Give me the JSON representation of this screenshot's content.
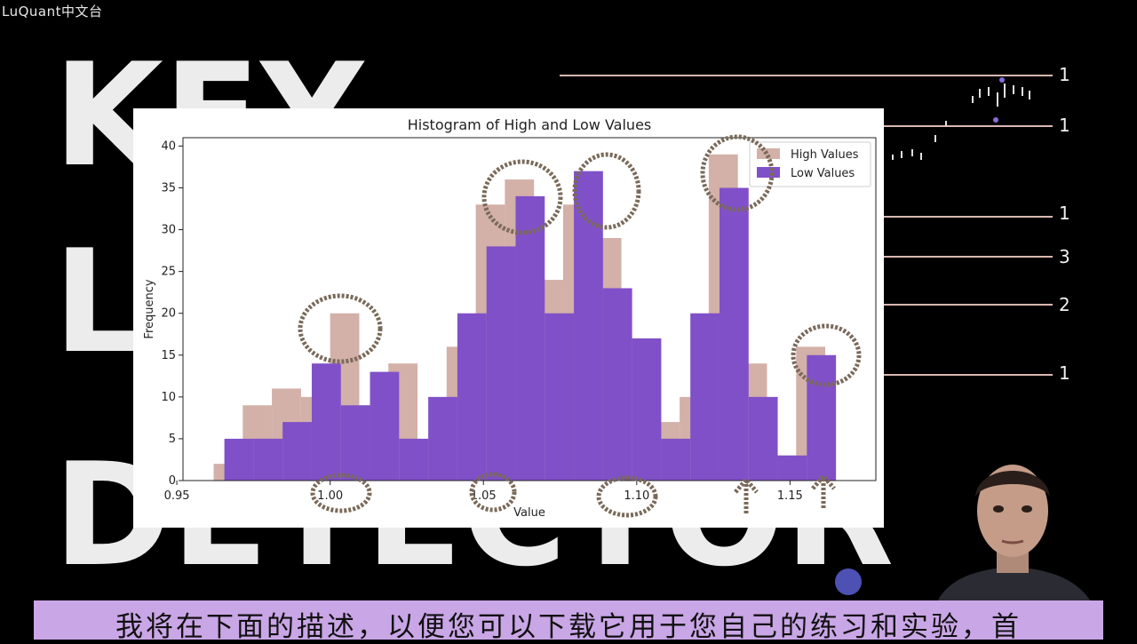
{
  "overlay": {
    "watermark": "LuQuant中文台",
    "background_words": [
      "KEY",
      "L",
      "DETECTOR"
    ],
    "level_numbers": [
      "1",
      "1",
      "1",
      "3",
      "2",
      "1"
    ],
    "subtitle": "我将在下面的描述，以便您可以下载它用于您自己的练习和实验，首"
  },
  "colors": {
    "high_bars": "#d3b0a8",
    "low_bars": "#8050c8",
    "level_lines": "#d9b8b0",
    "annotation": "#7a6a5a",
    "subtitle_bg": "#c9a6e6"
  },
  "chart_data": {
    "type": "bar",
    "title": "Histogram of High and Low Values",
    "xlabel": "Value",
    "ylabel": "Frequency",
    "xlim": [
      0.952,
      1.178
    ],
    "ylim": [
      0,
      41
    ],
    "xticks": [
      "0.95",
      "1.00",
      "1.05",
      "1.10",
      "1.15"
    ],
    "yticks": [
      "0",
      "5",
      "10",
      "15",
      "20",
      "25",
      "30",
      "35",
      "40"
    ],
    "legend": "top-right",
    "series": [
      {
        "name": "High Values",
        "bin_width": 0.0095,
        "bins": [
          [
            0.962,
            2
          ],
          [
            0.9715,
            9
          ],
          [
            0.981,
            11
          ],
          [
            0.9905,
            10
          ],
          [
            1.0,
            20
          ],
          [
            1.0095,
            9
          ],
          [
            1.019,
            14
          ],
          [
            1.0285,
            5
          ],
          [
            1.038,
            16
          ],
          [
            1.0475,
            33
          ],
          [
            1.057,
            36
          ],
          [
            1.0665,
            24
          ],
          [
            1.076,
            33
          ],
          [
            1.0855,
            29
          ],
          [
            1.095,
            17
          ],
          [
            1.1045,
            7
          ],
          [
            1.114,
            10
          ],
          [
            1.1235,
            39
          ],
          [
            1.133,
            14
          ],
          [
            1.1425,
            3
          ],
          [
            1.152,
            16
          ]
        ]
      },
      {
        "name": "Low Values",
        "bin_width": 0.0095,
        "bins": [
          [
            0.9655,
            5
          ],
          [
            0.975,
            5
          ],
          [
            0.9845,
            7
          ],
          [
            0.994,
            14
          ],
          [
            1.0035,
            9
          ],
          [
            1.013,
            13
          ],
          [
            1.0225,
            5
          ],
          [
            1.032,
            10
          ],
          [
            1.0415,
            20
          ],
          [
            1.051,
            28
          ],
          [
            1.0605,
            34
          ],
          [
            1.07,
            20
          ],
          [
            1.0795,
            37
          ],
          [
            1.089,
            23
          ],
          [
            1.0985,
            17
          ],
          [
            1.108,
            5
          ],
          [
            1.1175,
            20
          ],
          [
            1.127,
            35
          ],
          [
            1.1365,
            10
          ],
          [
            1.146,
            3
          ],
          [
            1.1555,
            15
          ]
        ]
      }
    ]
  }
}
